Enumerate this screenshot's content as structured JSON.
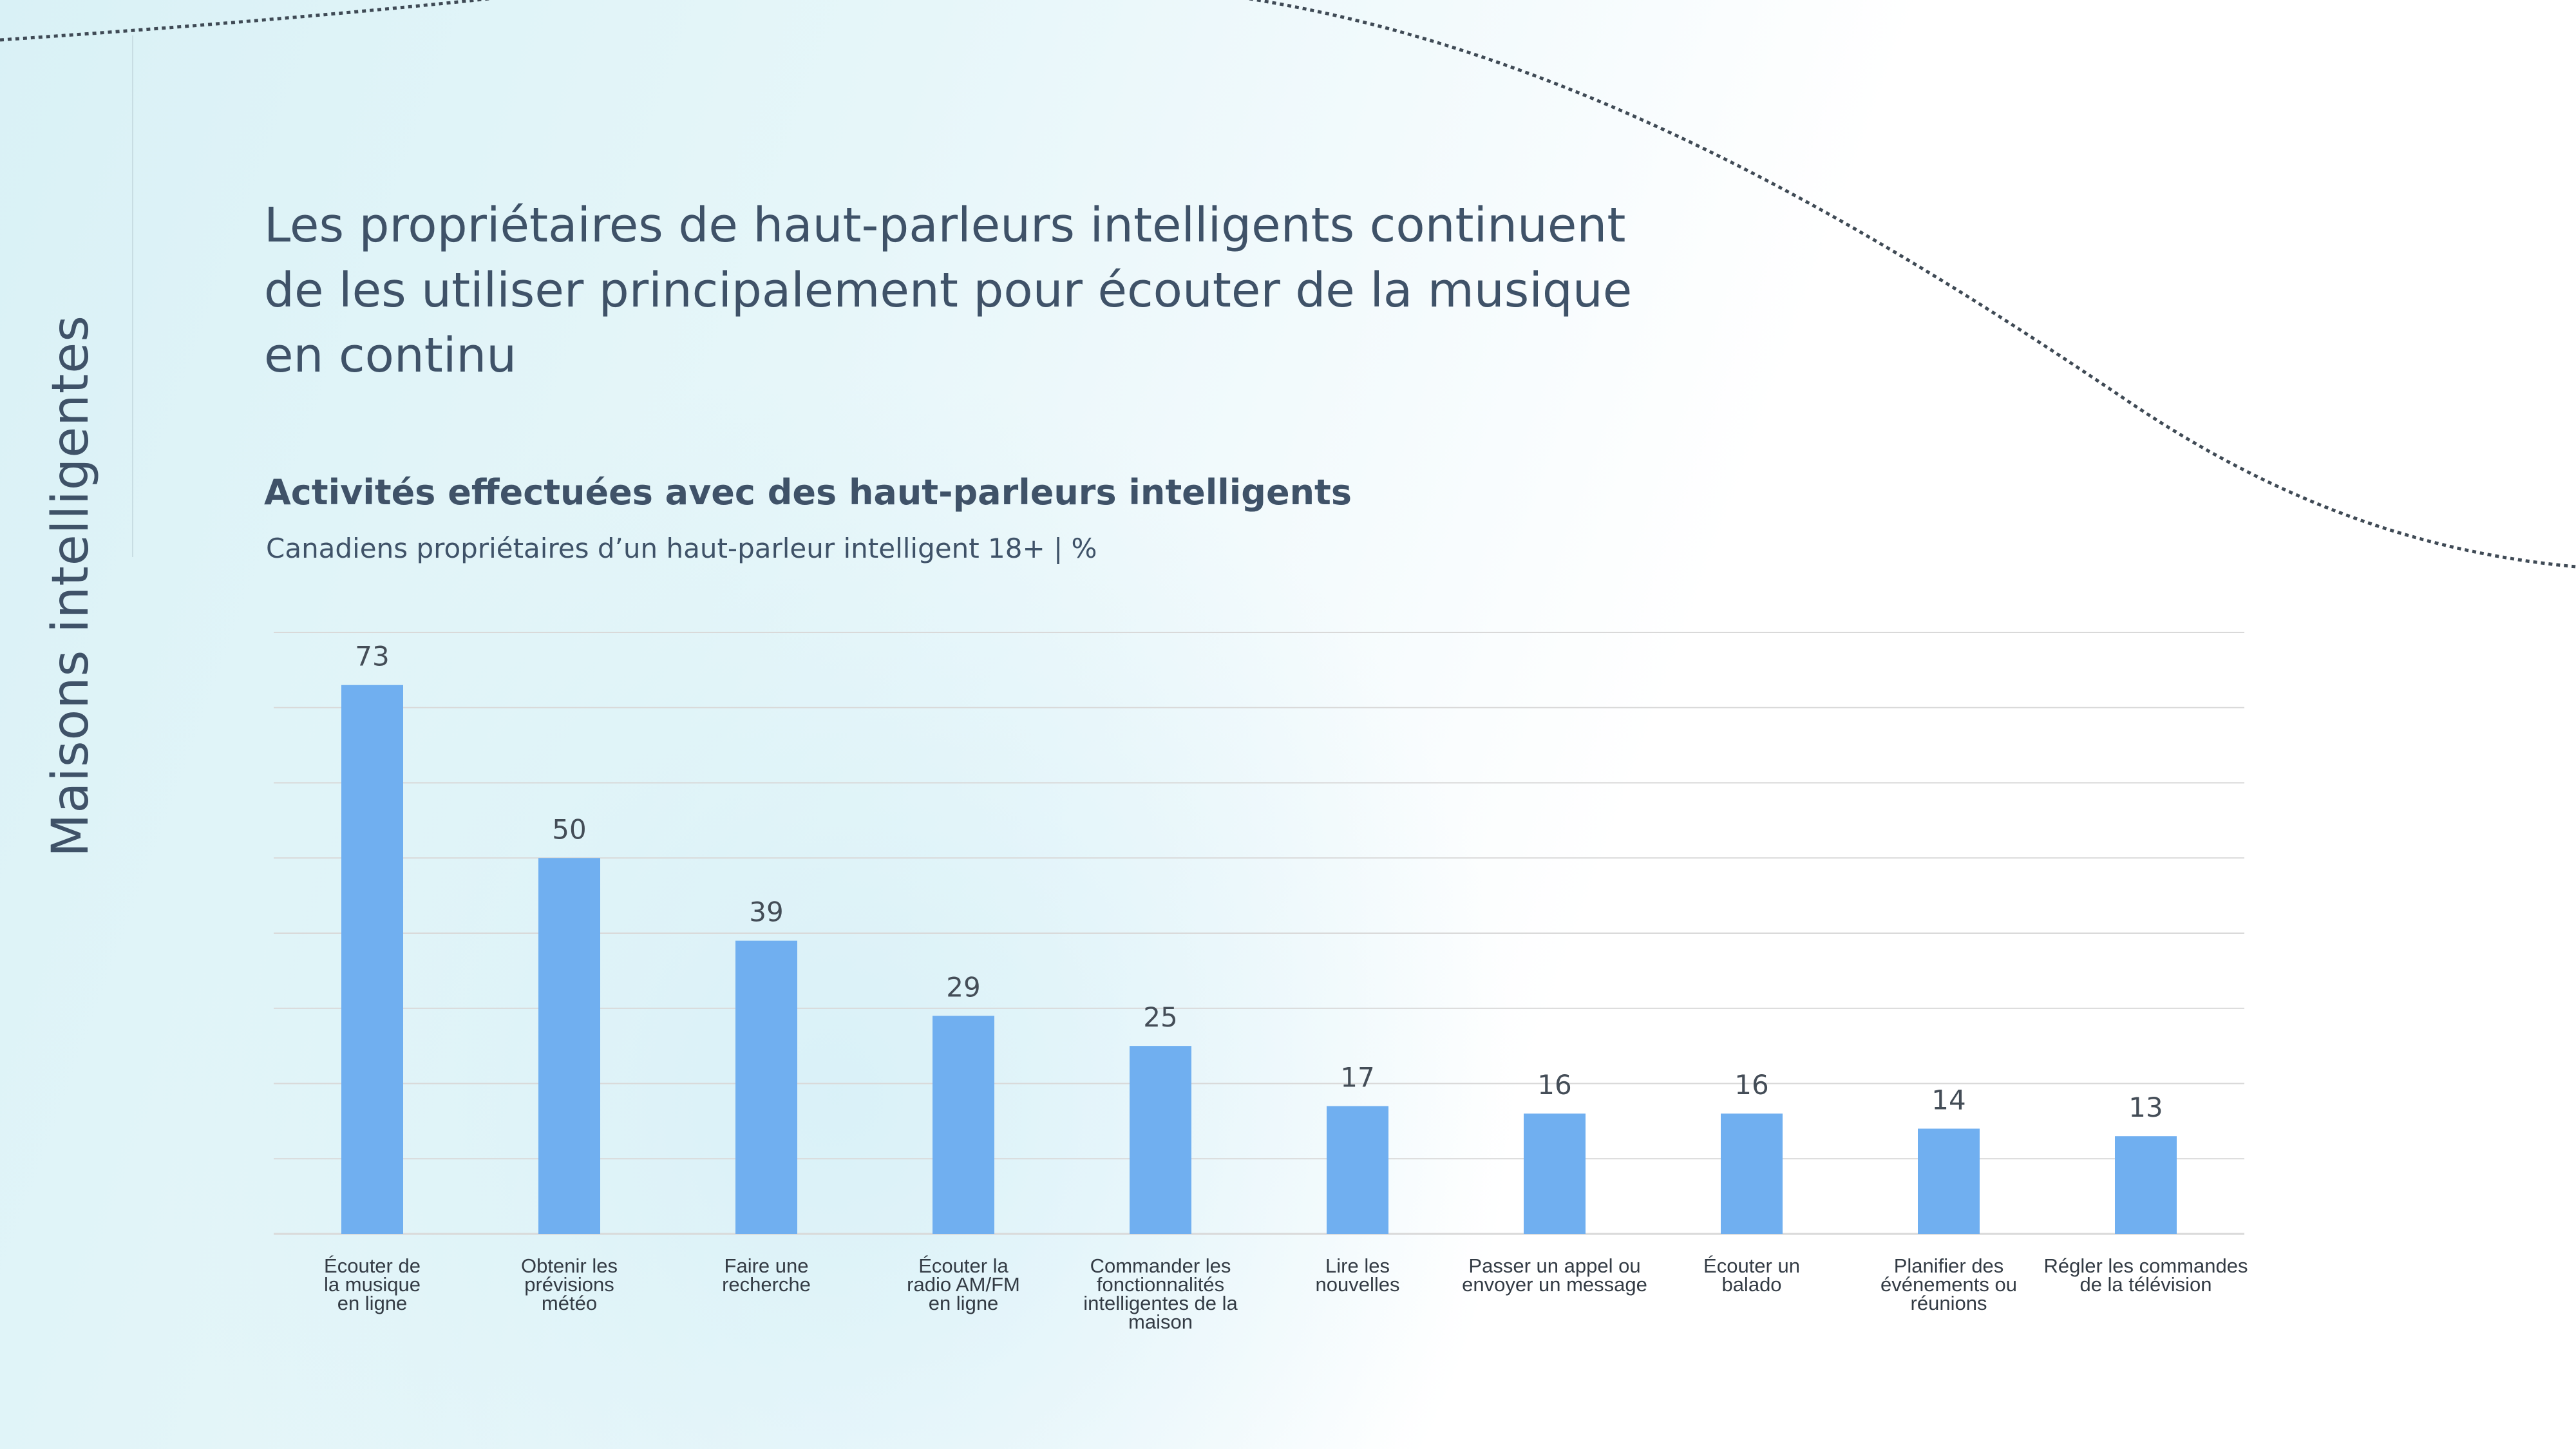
{
  "side_title": "Maisons intelligentes",
  "headline": "Les propriétaires de haut-parleurs intelligents continuent de les utiliser principalement pour écouter de la musique en continu",
  "colors": {
    "bar": "#70aff0",
    "text": "#3f5268",
    "grid": "#d9d9d9"
  },
  "chart_data": {
    "type": "bar",
    "title": "Activités effectuées avec des haut-parleurs intelligents",
    "subtitle": "Canadiens propriétaires d’un haut-parleur intelligent 18+ | %",
    "xlabel": "",
    "ylabel": "",
    "ylim": [
      0,
      80
    ],
    "grid": true,
    "categories": [
      [
        "Écouter de",
        "la musique",
        "en ligne"
      ],
      [
        "Obtenir les",
        "prévisions",
        "météo"
      ],
      [
        "Faire une",
        "recherche"
      ],
      [
        "Écouter la",
        "radio AM/FM",
        "en ligne"
      ],
      [
        "Commander les",
        "fonctionnalités",
        "intelligentes de la",
        "maison"
      ],
      [
        "Lire les",
        "nouvelles"
      ],
      [
        "Passer un appel ou",
        "envoyer un message"
      ],
      [
        "Écouter un",
        "balado"
      ],
      [
        "Planifier des",
        "événements ou",
        "réunions"
      ],
      [
        "Régler les commandes",
        "de la télévision"
      ]
    ],
    "values": [
      73,
      50,
      39,
      29,
      25,
      17,
      16,
      16,
      14,
      13
    ]
  }
}
